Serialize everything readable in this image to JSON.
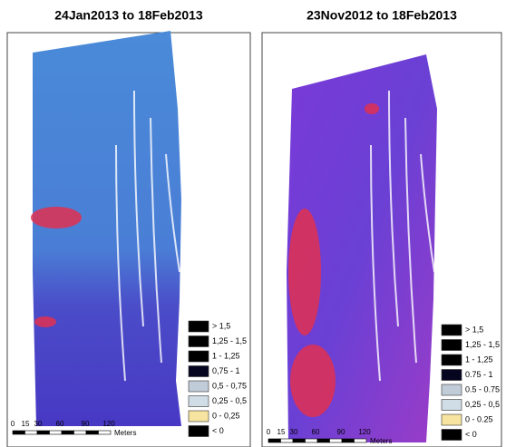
{
  "panels": [
    {
      "title": "24Jan2013 to 18Feb2013",
      "legend": [
        "> 1,5",
        "1,25 - 1,5",
        "1 - 1,25",
        "0,75 - 1",
        "0,5 - 0,75",
        "0,25 - 0,5",
        "0 - 0,25",
        "< 0"
      ],
      "scale_labels": [
        "0",
        "15",
        "30",
        "60",
        "90",
        "120"
      ],
      "scale_unit": "Meters"
    },
    {
      "title": "23Nov2012 to 18Feb2013",
      "legend": [
        "> 1,5",
        "1,25 - 1,5",
        "1 - 1,25",
        "0.75 - 1",
        "0.5 - 0.75",
        "0,25 - 0,5",
        "0 - 0.25",
        "< 0"
      ],
      "scale_labels": [
        "0",
        "15",
        "30",
        "60",
        "90",
        "120"
      ],
      "scale_unit": "Meters"
    }
  ]
}
